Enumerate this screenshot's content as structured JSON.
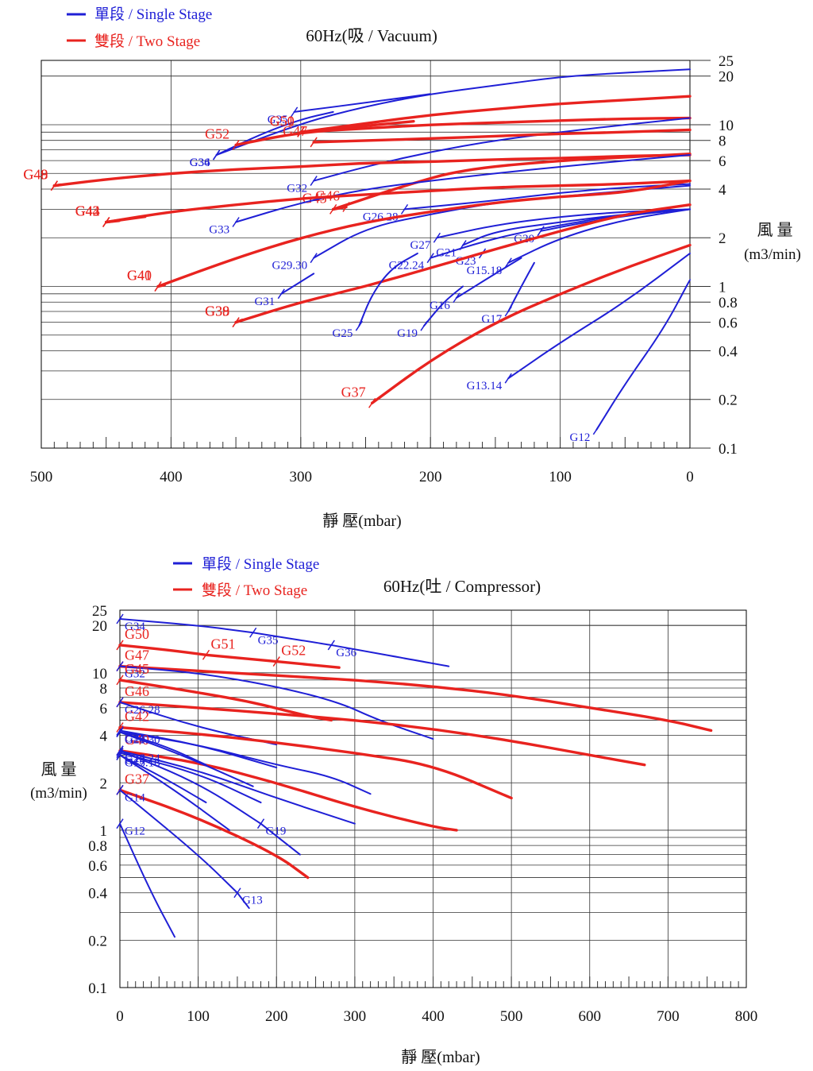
{
  "legend": {
    "single_stage": "單段 / Single Stage",
    "two_stage": "雙段 / Two Stage"
  },
  "colors": {
    "single_stage": "#1f1fd6",
    "two_stage": "#e8231f"
  },
  "chart_data": [
    {
      "type": "line",
      "title": "60Hz(吸 / Vacuum)",
      "xlabel": "靜 壓(mbar)",
      "ylabel": "風 量 (m3/min)",
      "xlim": [
        500,
        0
      ],
      "ylim": [
        0.1,
        25
      ],
      "yscale": "log",
      "grid": true,
      "legend_position": "top-left",
      "x_ticks": [
        500,
        400,
        300,
        200,
        100,
        0
      ],
      "y_ticks": [
        25,
        20,
        10,
        8,
        6,
        4,
        2,
        1,
        0.8,
        0.6,
        0.4,
        0.2,
        0.1
      ],
      "series": [
        {
          "name": "G34",
          "stage": "single",
          "x": [
            365,
            300,
            250,
            200,
            150,
            100,
            50,
            0
          ],
          "y": [
            6.5,
            10.2,
            13,
            15.5,
            17.5,
            19.8,
            21,
            22
          ]
        },
        {
          "name": "G36",
          "stage": "single",
          "x": [
            365,
            330,
            300,
            275
          ],
          "y": [
            6.5,
            8.8,
            10.8,
            12
          ]
        },
        {
          "name": "G35",
          "stage": "single",
          "x": [
            305,
            240,
            200
          ],
          "y": [
            12,
            14,
            15.5
          ]
        },
        {
          "name": "G50",
          "stage": "two",
          "x": [
            300,
            250,
            200,
            150,
            100,
            50,
            0
          ],
          "y": [
            9,
            10.2,
            11.5,
            12.5,
            13.5,
            14.2,
            15
          ]
        },
        {
          "name": "G51",
          "stage": "two",
          "x": [
            300,
            213
          ],
          "y": [
            9,
            10.5
          ]
        },
        {
          "name": "G52",
          "stage": "two",
          "x": [
            350,
            300,
            250,
            200,
            150,
            100,
            50,
            0
          ],
          "y": [
            7.5,
            9,
            9.5,
            10,
            10.3,
            10.6,
            10.9,
            11
          ]
        },
        {
          "name": "G32",
          "stage": "single",
          "x": [
            290,
            250,
            200,
            150,
            100,
            50,
            0
          ],
          "y": [
            4.5,
            5.5,
            6.8,
            8,
            9,
            10,
            11
          ]
        },
        {
          "name": "G47",
          "stage": "two",
          "x": [
            290,
            200,
            150,
            100,
            50,
            0
          ],
          "y": [
            7.8,
            8.2,
            8.5,
            8.8,
            9,
            9.3
          ]
        },
        {
          "name": "G48",
          "stage": "two",
          "x": [
            490,
            450,
            400,
            350,
            300,
            250,
            200,
            150,
            100,
            50,
            0
          ],
          "y": [
            4.2,
            4.6,
            5,
            5.3,
            5.5,
            5.8,
            5.9,
            6.1,
            6.2,
            6.4,
            6.5
          ]
        },
        {
          "name": "G49",
          "stage": "two",
          "x": [
            490,
            485
          ],
          "y": [
            4.2,
            4.25
          ]
        },
        {
          "name": "G45",
          "stage": "two",
          "x": [
            275,
            220,
            175,
            100,
            50,
            0
          ],
          "y": [
            3,
            4.2,
            5.3,
            6,
            6.3,
            6.6
          ]
        },
        {
          "name": "G46",
          "stage": "two",
          "x": [
            265,
            275
          ],
          "y": [
            3.1,
            3
          ]
        },
        {
          "name": "G33",
          "stage": "single",
          "x": [
            350,
            300,
            250,
            200,
            150,
            100,
            50,
            0
          ],
          "y": [
            2.5,
            3.3,
            4,
            4.5,
            5,
            5.5,
            6,
            6.5
          ]
        },
        {
          "name": "G42",
          "stage": "two",
          "x": [
            450,
            400,
            350,
            300,
            250,
            200,
            150,
            100,
            50,
            0
          ],
          "y": [
            2.5,
            2.9,
            3.2,
            3.5,
            3.7,
            3.9,
            4.1,
            4.2,
            4.3,
            4.5
          ]
        },
        {
          "name": "G43",
          "stage": "two",
          "x": [
            450,
            420
          ],
          "y": [
            2.5,
            2.7
          ]
        },
        {
          "name": "G44",
          "stage": "two",
          "x": [
            450,
            440
          ],
          "y": [
            2.5,
            2.55
          ]
        },
        {
          "name": "G26.28",
          "stage": "single",
          "x": [
            220,
            150,
            100,
            50,
            0
          ],
          "y": [
            3,
            3.4,
            3.8,
            4.1,
            4.3
          ]
        },
        {
          "name": "G29.30",
          "stage": "single",
          "x": [
            290,
            250,
            200,
            150,
            100,
            50,
            0
          ],
          "y": [
            1.5,
            2.3,
            2.8,
            3.3,
            3.6,
            3.9,
            4.2
          ]
        },
        {
          "name": "G40",
          "stage": "two",
          "x": [
            410,
            350,
            300,
            250,
            200,
            150,
            100,
            50,
            0
          ],
          "y": [
            1,
            1.5,
            2,
            2.5,
            2.9,
            3.3,
            3.6,
            3.8,
            4.5
          ]
        },
        {
          "name": "G41",
          "stage": "two",
          "x": [
            410,
            405
          ],
          "y": [
            1,
            1.02
          ]
        },
        {
          "name": "G31",
          "stage": "single",
          "x": [
            315,
            290
          ],
          "y": [
            0.9,
            1.2
          ]
        },
        {
          "name": "G27",
          "stage": "single",
          "x": [
            195,
            150,
            100,
            50,
            0
          ],
          "y": [
            2,
            2.4,
            2.7,
            2.9,
            3
          ]
        },
        {
          "name": "G21",
          "stage": "single",
          "x": [
            175,
            150,
            100,
            50,
            0
          ],
          "y": [
            1.8,
            2.2,
            2.5,
            2.8,
            3
          ]
        },
        {
          "name": "G20",
          "stage": "single",
          "x": [
            115,
            80,
            40,
            0
          ],
          "y": [
            2.2,
            2.5,
            2.8,
            3
          ]
        },
        {
          "name": "G23",
          "stage": "single",
          "x": [
            160,
            120
          ],
          "y": [
            1.6,
            2
          ]
        },
        {
          "name": "G22.24",
          "stage": "single",
          "x": [
            200,
            150,
            100,
            50,
            0
          ],
          "y": [
            1.5,
            2,
            2.4,
            2.8,
            3
          ]
        },
        {
          "name": "G15.18",
          "stage": "single",
          "x": [
            140,
            100,
            50,
            0
          ],
          "y": [
            1.4,
            2,
            2.6,
            3
          ]
        },
        {
          "name": "G38",
          "stage": "two",
          "x": [
            350,
            300,
            250,
            200,
            150,
            100,
            50,
            0
          ],
          "y": [
            0.6,
            0.8,
            1,
            1.3,
            1.7,
            2.2,
            2.8,
            3.2
          ]
        },
        {
          "name": "G39",
          "stage": "two",
          "x": [
            350,
            345
          ],
          "y": [
            0.6,
            0.62
          ]
        },
        {
          "name": "G25",
          "stage": "single",
          "x": [
            255,
            245,
            230,
            210
          ],
          "y": [
            0.57,
            0.9,
            1.3,
            1.6
          ]
        },
        {
          "name": "G19",
          "stage": "single",
          "x": [
            205,
            190,
            175
          ],
          "y": [
            0.57,
            0.8,
            1
          ]
        },
        {
          "name": "G16",
          "stage": "single",
          "x": [
            180,
            150,
            130
          ],
          "y": [
            0.85,
            1.2,
            1.5
          ]
        },
        {
          "name": "G17",
          "stage": "single",
          "x": [
            140,
            130,
            120
          ],
          "y": [
            0.7,
            1,
            1.4
          ]
        },
        {
          "name": "G37",
          "stage": "two",
          "x": [
            245,
            200,
            150,
            100,
            50,
            0
          ],
          "y": [
            0.19,
            0.35,
            0.6,
            0.9,
            1.3,
            1.8
          ]
        },
        {
          "name": "G13.14",
          "stage": "single",
          "x": [
            140,
            100,
            50,
            0
          ],
          "y": [
            0.27,
            0.45,
            0.8,
            1.6
          ]
        },
        {
          "name": "G12",
          "stage": "single",
          "x": [
            72,
            50,
            20,
            0
          ],
          "y": [
            0.13,
            0.25,
            0.55,
            1.1
          ]
        }
      ]
    },
    {
      "type": "line",
      "title": "60Hz(吐 / Compressor)",
      "xlabel": "靜 壓(mbar)",
      "ylabel": "風 量 (m3/min)",
      "xlim": [
        0,
        800
      ],
      "ylim": [
        0.1,
        25
      ],
      "yscale": "log",
      "grid": true,
      "legend_position": "top-left",
      "x_ticks": [
        0,
        100,
        200,
        300,
        400,
        500,
        600,
        700,
        800
      ],
      "y_ticks": [
        25,
        20,
        10,
        8,
        6,
        4,
        2,
        1,
        0.8,
        0.6,
        0.4,
        0.2,
        0.1
      ],
      "series": [
        {
          "name": "G34",
          "stage": "single",
          "x": [
            0,
            100,
            170
          ],
          "y": [
            22,
            20,
            18
          ]
        },
        {
          "name": "G35",
          "stage": "single",
          "x": [
            170,
            270
          ],
          "y": [
            18,
            15
          ]
        },
        {
          "name": "G36",
          "stage": "single",
          "x": [
            270,
            420
          ],
          "y": [
            15,
            11
          ]
        },
        {
          "name": "G50",
          "stage": "two",
          "x": [
            0,
            60,
            110
          ],
          "y": [
            15,
            14,
            13
          ]
        },
        {
          "name": "G51",
          "stage": "two",
          "x": [
            110,
            200
          ],
          "y": [
            13,
            11.8
          ]
        },
        {
          "name": "G52",
          "stage": "two",
          "x": [
            200,
            280
          ],
          "y": [
            11.8,
            10.8
          ]
        },
        {
          "name": "G47",
          "stage": "two",
          "x": [
            0,
            100,
            200,
            300,
            400,
            500,
            600,
            700,
            755
          ],
          "y": [
            11,
            10.3,
            9.6,
            9,
            8.2,
            7.2,
            6,
            5,
            4.3
          ]
        },
        {
          "name": "G32",
          "stage": "single",
          "x": [
            0,
            100,
            200,
            280,
            330,
            400
          ],
          "y": [
            11,
            10,
            8.2,
            6.5,
            5,
            3.8
          ]
        },
        {
          "name": "G45",
          "stage": "two",
          "x": [
            0,
            100,
            170,
            240,
            270
          ],
          "y": [
            9,
            7.5,
            6.5,
            5.3,
            5
          ]
        },
        {
          "name": "G46",
          "stage": "two",
          "x": [
            0,
            100,
            200,
            300,
            400,
            500,
            600,
            670
          ],
          "y": [
            6.5,
            6,
            5.5,
            5,
            4.4,
            3.7,
            3,
            2.6
          ]
        },
        {
          "name": "G26.28",
          "stage": "single",
          "x": [
            0,
            100,
            200
          ],
          "y": [
            6.5,
            4.5,
            3.5
          ]
        },
        {
          "name": "G27",
          "stage": "single",
          "x": [
            0,
            100,
            200
          ],
          "y": [
            4.3,
            3.5,
            2.5
          ]
        },
        {
          "name": "G42",
          "stage": "two",
          "x": [
            0,
            100,
            200,
            300,
            400,
            500
          ],
          "y": [
            4.5,
            4.1,
            3.6,
            3.1,
            2.6,
            1.6
          ]
        },
        {
          "name": "G29.30",
          "stage": "single",
          "x": [
            0,
            100,
            200,
            270,
            320
          ],
          "y": [
            4.2,
            3.5,
            2.6,
            2.2,
            1.7
          ]
        },
        {
          "name": "G40",
          "stage": "two",
          "x": [
            0,
            100,
            200,
            300,
            400,
            430
          ],
          "y": [
            3.2,
            2.7,
            2,
            1.4,
            1.05,
            1
          ]
        },
        {
          "name": "G20",
          "stage": "single",
          "x": [
            0,
            60,
            110
          ],
          "y": [
            4.2,
            3.4,
            2.6
          ]
        },
        {
          "name": "G21",
          "stage": "single",
          "x": [
            0,
            80,
            170
          ],
          "y": [
            4.2,
            3,
            1.9
          ]
        },
        {
          "name": "G22.24",
          "stage": "single",
          "x": [
            0,
            100,
            200,
            300
          ],
          "y": [
            3.2,
            2.4,
            1.6,
            1.1
          ]
        },
        {
          "name": "G23",
          "stage": "single",
          "x": [
            0,
            100,
            180
          ],
          "y": [
            3.1,
            2.3,
            1.5
          ]
        },
        {
          "name": "G15.18",
          "stage": "single",
          "x": [
            0,
            60,
            110
          ],
          "y": [
            3,
            2.1,
            1.5
          ]
        },
        {
          "name": "G17",
          "stage": "single",
          "x": [
            0,
            70,
            140
          ],
          "y": [
            3,
            1.8,
            1
          ]
        },
        {
          "name": "G16",
          "stage": "single",
          "x": [
            0,
            100,
            180
          ],
          "y": [
            3.2,
            2,
            1.1
          ]
        },
        {
          "name": "G19",
          "stage": "single",
          "x": [
            180,
            230
          ],
          "y": [
            1.1,
            0.7
          ]
        },
        {
          "name": "G37",
          "stage": "two",
          "x": [
            0,
            100,
            200,
            240
          ],
          "y": [
            1.8,
            1.2,
            0.7,
            0.5
          ]
        },
        {
          "name": "G14",
          "stage": "single",
          "x": [
            0,
            100,
            150
          ],
          "y": [
            1.8,
            0.7,
            0.4
          ]
        },
        {
          "name": "G13",
          "stage": "single",
          "x": [
            150,
            165
          ],
          "y": [
            0.4,
            0.32
          ]
        },
        {
          "name": "G12",
          "stage": "single",
          "x": [
            0,
            40,
            70
          ],
          "y": [
            1.1,
            0.4,
            0.21
          ]
        }
      ]
    }
  ]
}
